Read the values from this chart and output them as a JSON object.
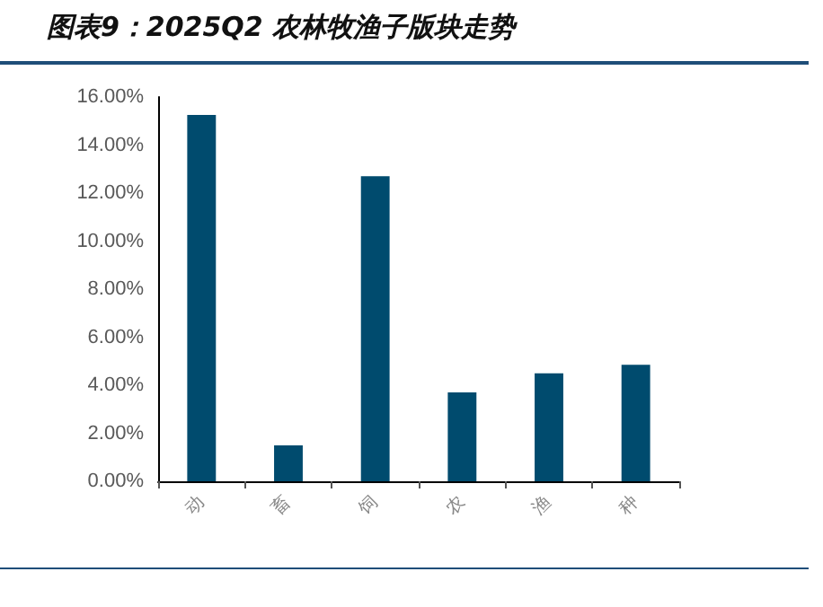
{
  "chart_data": {
    "type": "bar",
    "title": "图表9：2025Q2 农林牧渔子版块走势",
    "categories": [
      "动",
      "畜",
      "饲",
      "农",
      "渔",
      "种"
    ],
    "values": [
      15.25,
      1.5,
      12.7,
      3.7,
      4.5,
      4.85
    ],
    "color": "#004b6e",
    "ylim": [
      0,
      16
    ],
    "yticks": [
      {
        "value": 0,
        "label": "0.00%"
      },
      {
        "value": 2,
        "label": "2.00%"
      },
      {
        "value": 4,
        "label": "4.00%"
      },
      {
        "value": 6,
        "label": "6.00%"
      },
      {
        "value": 8,
        "label": "8.00%"
      },
      {
        "value": 10,
        "label": "10.00%"
      },
      {
        "value": 12,
        "label": "12.00%"
      },
      {
        "value": 14,
        "label": "14.00%"
      },
      {
        "value": 16,
        "label": "16.00%"
      }
    ],
    "grid": false
  }
}
